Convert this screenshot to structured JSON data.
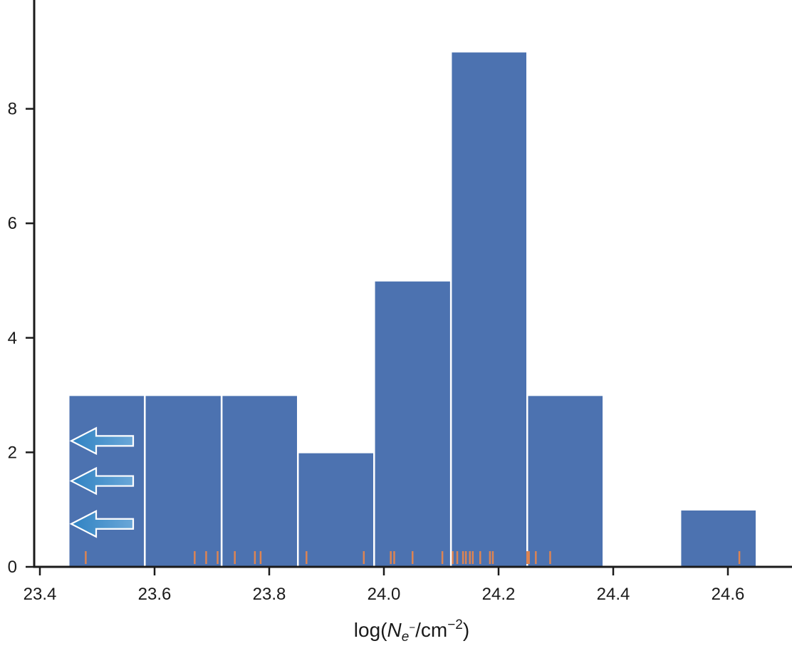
{
  "chart_data": {
    "type": "bar",
    "subtype": "histogram with rug plot",
    "title": "",
    "xlabel": {
      "prefix": "log(",
      "var": "N",
      "sub": "e",
      "sub_sup": "−",
      "unit": "/cm",
      "unit_sup": "−2",
      "suffix": ")"
    },
    "ylabel": "",
    "xlim": [
      23.42,
      24.72
    ],
    "ylim": [
      0,
      9.9
    ],
    "x_ticks": [
      "23.4",
      "23.6",
      "23.8",
      "24.0",
      "24.2",
      "24.4",
      "24.6"
    ],
    "y_ticks": [
      "0",
      "2",
      "4",
      "6",
      "8"
    ],
    "bins": [
      {
        "x0": 23.45,
        "x1": 23.583,
        "count": 3
      },
      {
        "x0": 23.583,
        "x1": 23.717,
        "count": 3
      },
      {
        "x0": 23.717,
        "x1": 23.85,
        "count": 3
      },
      {
        "x0": 23.85,
        "x1": 23.983,
        "count": 2
      },
      {
        "x0": 23.983,
        "x1": 24.117,
        "count": 5
      },
      {
        "x0": 24.117,
        "x1": 24.25,
        "count": 9
      },
      {
        "x0": 24.25,
        "x1": 24.383,
        "count": 3
      },
      {
        "x0": 24.383,
        "x1": 24.517,
        "count": 0
      },
      {
        "x0": 24.517,
        "x1": 24.65,
        "count": 1
      }
    ],
    "rug": [
      23.48,
      23.67,
      23.69,
      23.71,
      23.74,
      23.775,
      23.785,
      23.865,
      23.965,
      24.012,
      24.018,
      24.05,
      24.102,
      24.12,
      24.128,
      24.138,
      24.143,
      24.15,
      24.155,
      24.168,
      24.185,
      24.19,
      24.25,
      24.253,
      24.265,
      24.29,
      24.62
    ],
    "upper_limit_arrows": {
      "count": 3,
      "y_values": [
        2.2,
        1.5,
        0.75
      ]
    },
    "colors": {
      "bars": "#4c72b0",
      "bar_edge": "#ffffff",
      "rug": "#dd8452",
      "axis": "#1a1a1a",
      "arrow_fill_start": "#2f82c2",
      "arrow_fill_end": "#6aa7d8",
      "arrow_stroke": "#ffffff"
    },
    "grid": false,
    "legend": "none"
  }
}
